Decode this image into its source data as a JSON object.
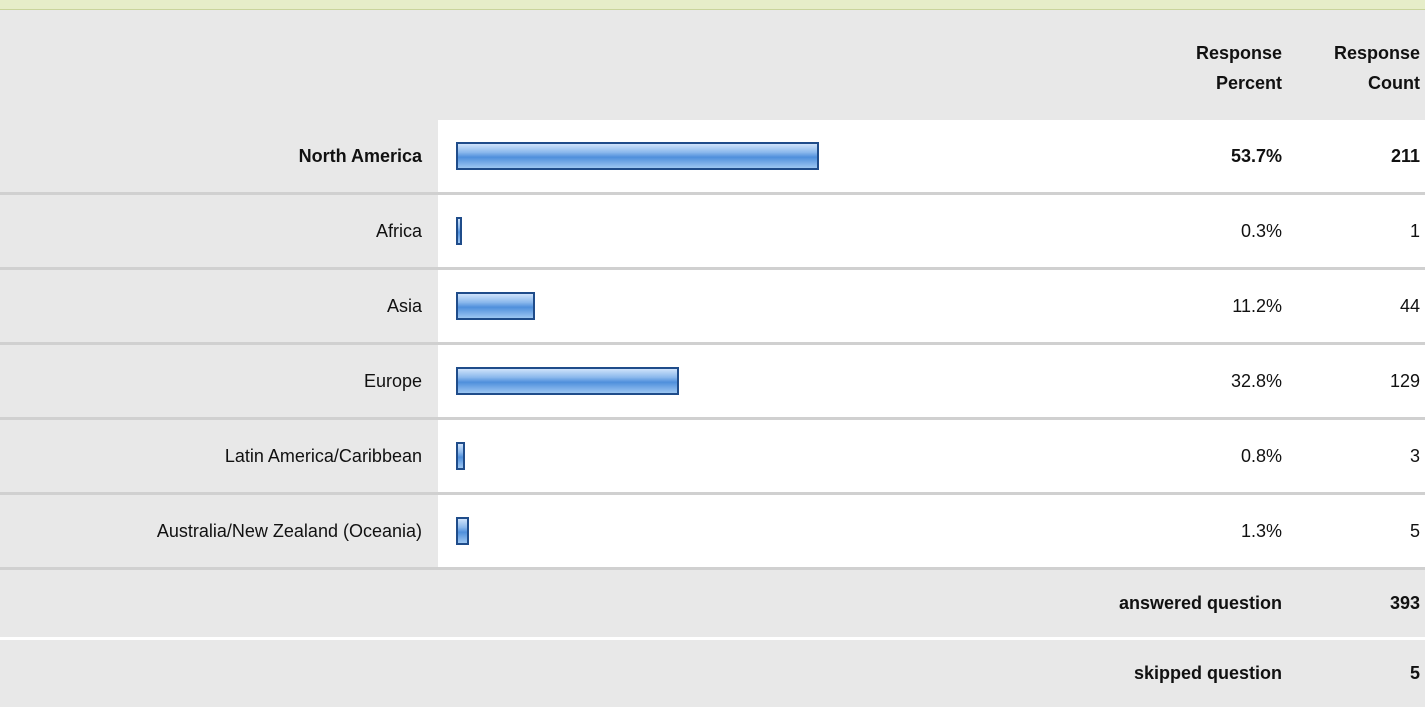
{
  "header": {
    "percent": "Response Percent",
    "count": "Response Count"
  },
  "rows": [
    {
      "label": "North America",
      "percent": 53.7,
      "percent_label": "53.7%",
      "count": 211,
      "bold": true
    },
    {
      "label": "Africa",
      "percent": 0.3,
      "percent_label": "0.3%",
      "count": 1
    },
    {
      "label": "Asia",
      "percent": 11.2,
      "percent_label": "11.2%",
      "count": 44
    },
    {
      "label": "Europe",
      "percent": 32.8,
      "percent_label": "32.8%",
      "count": 129
    },
    {
      "label": "Latin America/Caribbean",
      "percent": 0.8,
      "percent_label": "0.8%",
      "count": 3
    },
    {
      "label": "Australia/New Zealand (Oceania)",
      "percent": 1.3,
      "percent_label": "1.3%",
      "count": 5
    }
  ],
  "summary": [
    {
      "label": "answered question",
      "count": 393
    },
    {
      "label": "skipped question",
      "count": 5
    }
  ]
}
